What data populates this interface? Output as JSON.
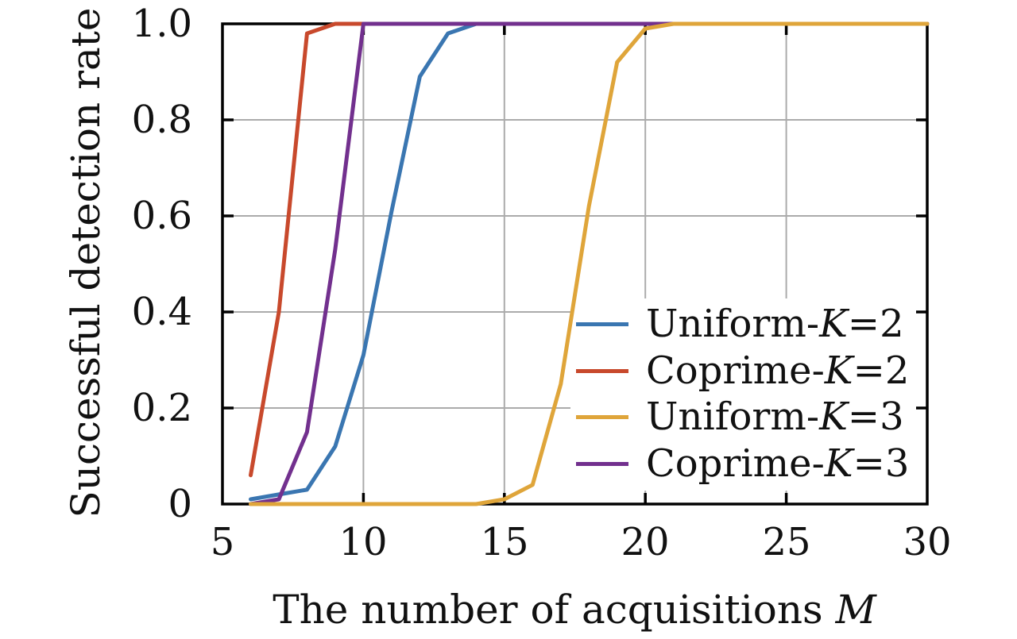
{
  "chart_data": {
    "type": "line",
    "title": "",
    "xlabel": "The number of acquisitions M",
    "xlabel_text": "The number of acquisitions ",
    "xlabel_var": "M",
    "ylabel": "Successful detection rate",
    "xlim": [
      5,
      30
    ],
    "ylim": [
      0,
      1.0
    ],
    "x_ticks": [
      5,
      10,
      15,
      20,
      25,
      30
    ],
    "x_tick_labels": [
      "5",
      "10",
      "15",
      "20",
      "25",
      "30"
    ],
    "y_ticks": [
      0,
      0.2,
      0.4,
      0.6,
      0.8,
      1.0
    ],
    "y_tick_labels": [
      "0",
      "0.2",
      "0.4",
      "0.6",
      "0.8",
      "1.0"
    ],
    "grid": true,
    "grid_color": "#ababab",
    "axis_color": "#000000",
    "background_color": "#ffffff",
    "legend_position": "lower-right-inside",
    "legend_background": "#ffffff",
    "x": [
      6,
      7,
      8,
      9,
      10,
      11,
      12,
      13,
      14,
      15,
      16,
      17,
      18,
      19,
      20,
      21,
      22,
      23,
      24,
      25,
      26,
      27,
      28,
      29,
      30
    ],
    "series": [
      {
        "name": "Uniform-K=2",
        "label_prefix": "Uniform-",
        "label_var": "K",
        "label_suffix": "=2",
        "color": "#3a76b1",
        "values": [
          0.01,
          0.02,
          0.03,
          0.12,
          0.31,
          0.61,
          0.89,
          0.98,
          1,
          1,
          1,
          1,
          1,
          1,
          1,
          1,
          1,
          1,
          1,
          1,
          1,
          1,
          1,
          1,
          1
        ]
      },
      {
        "name": "Coprime-K=2",
        "label_prefix": "Coprime-",
        "label_var": "K",
        "label_suffix": "=2",
        "color": "#c8492c",
        "values": [
          0.06,
          0.4,
          0.98,
          1,
          1,
          1,
          1,
          1,
          1,
          1,
          1,
          1,
          1,
          1,
          1,
          1,
          1,
          1,
          1,
          1,
          1,
          1,
          1,
          1,
          1
        ]
      },
      {
        "name": "Uniform-K=3",
        "label_prefix": "Uniform-",
        "label_var": "K",
        "label_suffix": "=3",
        "color": "#dfa53a",
        "values": [
          0,
          0,
          0,
          0,
          0,
          0,
          0,
          0,
          0,
          0.01,
          0.04,
          0.25,
          0.62,
          0.92,
          0.99,
          1,
          1,
          1,
          1,
          1,
          1,
          1,
          1,
          1,
          1
        ]
      },
      {
        "name": "Coprime-K=3",
        "label_prefix": "Coprime-",
        "label_var": "K",
        "label_suffix": "=3",
        "color": "#72308e",
        "values": [
          0,
          0.01,
          0.15,
          0.53,
          1,
          1,
          1,
          1,
          1,
          1,
          1,
          1,
          1,
          1,
          1,
          1,
          1,
          1,
          1,
          1,
          1,
          1,
          1,
          1,
          1
        ]
      }
    ]
  }
}
